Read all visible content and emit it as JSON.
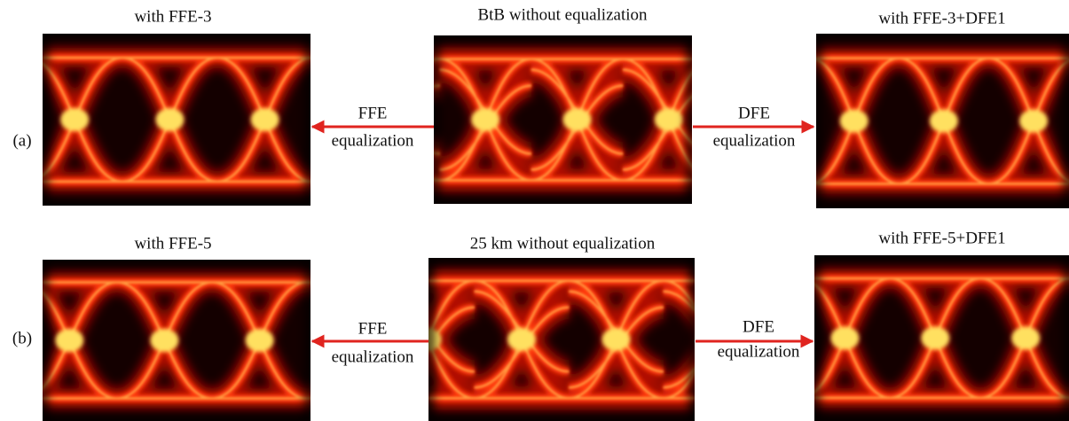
{
  "rows": [
    {
      "label": "(a)",
      "left_title": "with FFE-3",
      "center_title": "BtB without equalization",
      "right_title": "with FFE-3+DFE1",
      "left_arrow": {
        "line1": "FFE",
        "line2": "equalization"
      },
      "right_arrow": {
        "line1": "DFE",
        "line2": "equalization"
      }
    },
    {
      "label": "(b)",
      "left_title": "with FFE-5",
      "center_title": "25 km without equalization",
      "right_title": "with FFE-5+DFE1",
      "left_arrow": {
        "line1": "FFE",
        "line2": "equalization"
      },
      "right_arrow": {
        "line1": "DFE",
        "line2": "equalization"
      }
    }
  ]
}
